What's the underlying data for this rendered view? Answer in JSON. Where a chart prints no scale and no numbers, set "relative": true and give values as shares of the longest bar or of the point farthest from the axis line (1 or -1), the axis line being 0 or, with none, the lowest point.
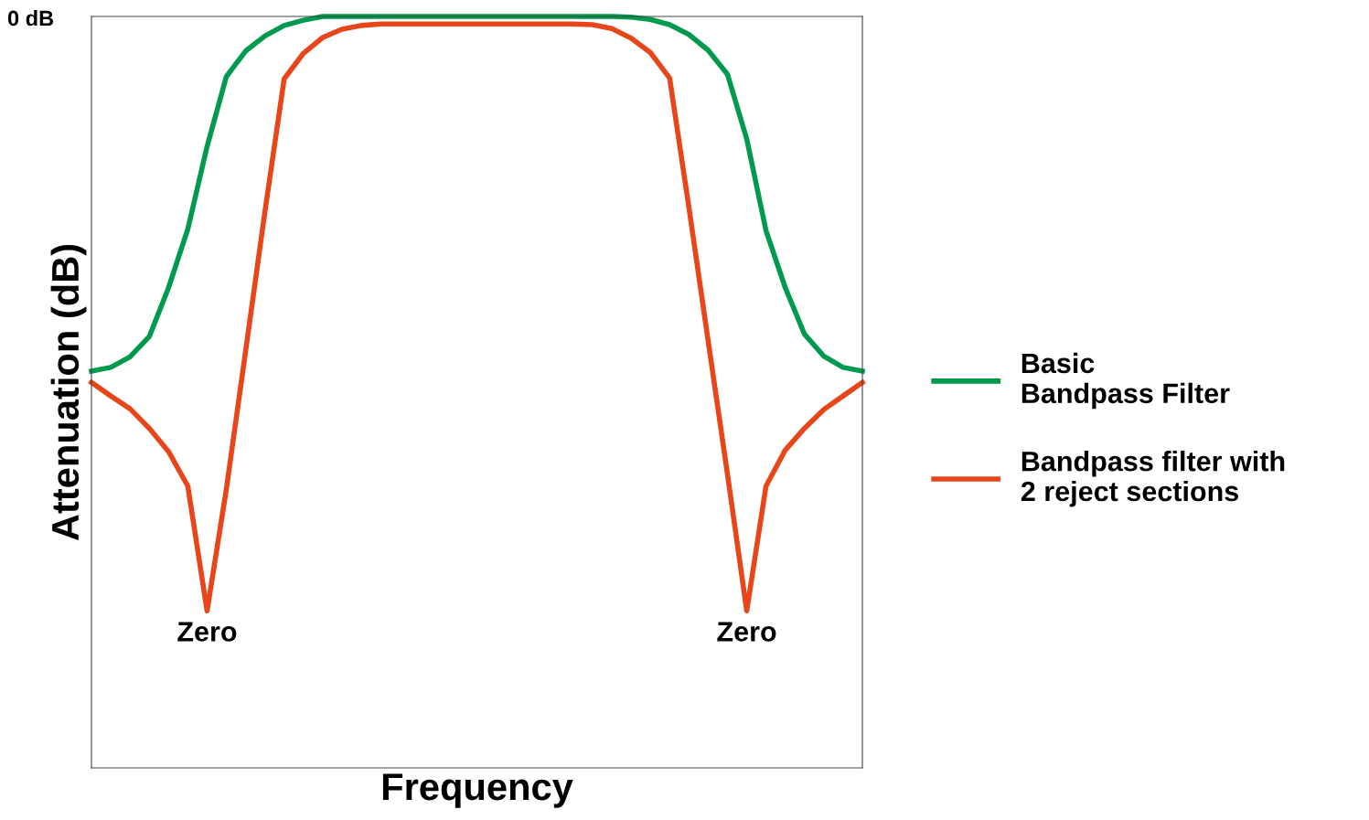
{
  "chart_data": {
    "type": "line",
    "relative": true,
    "xlabel": "Frequency",
    "ylabel": "Attenuation (dB)",
    "legend": "right",
    "grid": false,
    "marker": "none",
    "line_style": "solid",
    "categories": [
      null,
      null,
      null,
      null,
      null,
      null,
      null,
      null,
      null,
      null,
      null,
      null,
      null,
      null,
      null,
      null,
      null,
      null,
      null,
      null,
      null,
      null,
      null,
      null,
      null,
      null,
      null,
      null,
      null,
      null,
      null,
      null,
      null,
      null,
      null,
      null,
      null,
      null,
      null,
      null,
      null
    ],
    "series": [
      {
        "name": "Basic\nBandpass Filter",
        "color": "#009a4e",
        "values": [
          0.528,
          0.533,
          0.547,
          0.574,
          0.639,
          0.717,
          0.827,
          0.92,
          0.954,
          0.974,
          0.988,
          0.995,
          1.0,
          1.0,
          1.0,
          1.0,
          1.0,
          1.0,
          1.0,
          1.0,
          1.0,
          1.0,
          1.0,
          1.0,
          1.0,
          1.0,
          1.0,
          1.0,
          0.999,
          0.996,
          0.989,
          0.976,
          0.955,
          0.923,
          0.837,
          0.715,
          0.639,
          0.577,
          0.548,
          0.533,
          0.528
        ]
      },
      {
        "name": "Bandpass filter with\n2 reject sections",
        "color": "#e8461a",
        "values": [
          0.513,
          0.495,
          0.478,
          0.452,
          0.421,
          0.375,
          0.209,
          0.371,
          0.555,
          0.74,
          0.917,
          0.951,
          0.972,
          0.983,
          0.988,
          0.99,
          0.99,
          0.99,
          0.99,
          0.99,
          0.99,
          0.99,
          0.99,
          0.99,
          0.99,
          0.99,
          0.989,
          0.984,
          0.971,
          0.952,
          0.918,
          0.746,
          0.568,
          0.391,
          0.209,
          0.375,
          0.423,
          0.452,
          0.477,
          0.495,
          0.513
        ]
      }
    ],
    "annotations": [
      "0 dB",
      {
        "text": "Zero",
        "y": 0.209
      },
      {
        "text": "Zero",
        "y": 0.209
      }
    ]
  }
}
